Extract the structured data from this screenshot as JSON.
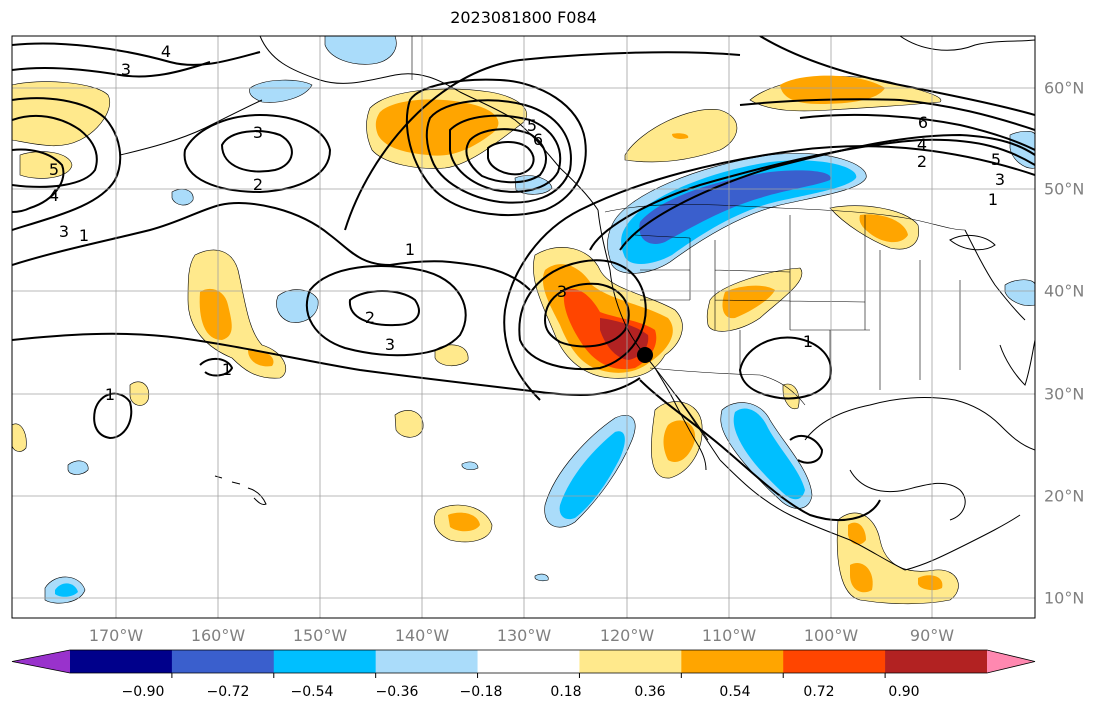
{
  "title": "2023081800 F084",
  "lon_labels": [
    "170°W",
    "160°W",
    "150°W",
    "140°W",
    "130°W",
    "120°W",
    "110°W",
    "100°W",
    "90°W"
  ],
  "lat_labels": [
    "60°N",
    "50°N",
    "40°N",
    "30°N",
    "20°N",
    "10°N"
  ],
  "contour_labels": [
    "3",
    "4",
    "5",
    "3",
    "2",
    "3",
    "4",
    "5",
    "6",
    "1",
    "1",
    "3",
    "2",
    "3",
    "1",
    "1",
    "6",
    "5",
    "4",
    "3",
    "2",
    "1",
    "1"
  ],
  "colorbar": {
    "tick_labels": [
      "−0.90",
      "−0.72",
      "−0.54",
      "−0.36",
      "−0.18",
      "0.18",
      "0.36",
      "0.54",
      "0.72",
      "0.90"
    ],
    "colors": [
      "#9932cc",
      "#00008b",
      "#3a5fcd",
      "#00bfff",
      "#aadcfa",
      "#ffffff",
      "#ffe98c",
      "#ffa500",
      "#ff4500",
      "#b22222",
      "#ff88b0"
    ]
  },
  "colors": {
    "coast": "#000000",
    "grid": "#a0a0a0",
    "contour": "#000000",
    "marker": "#000000"
  }
}
